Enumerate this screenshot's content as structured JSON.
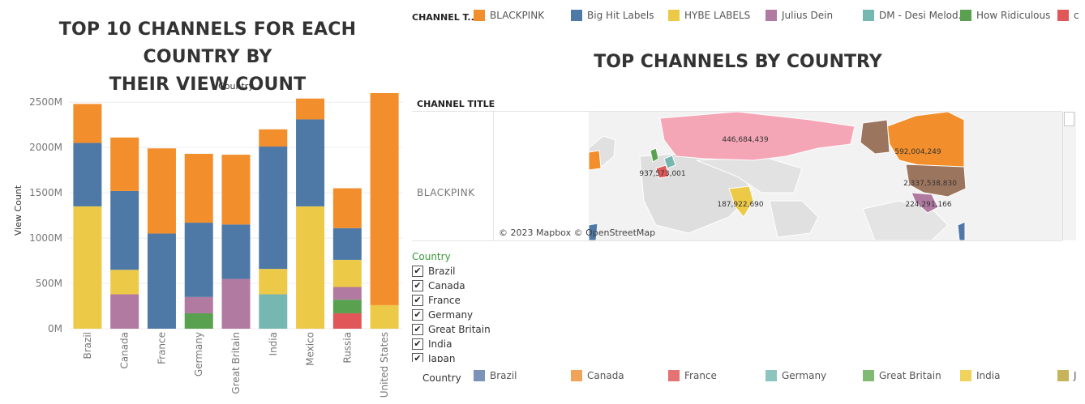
{
  "left_panel": {
    "title_line1": "TOP 10 CHANNELS FOR EACH COUNTRY BY",
    "title_line2": "THEIR VIEW COUNT"
  },
  "colors": {
    "BLACKPINK": "#f28e2b",
    "Big Hit Labels": "#4e79a7",
    "HYBE LABELS": "#edc948",
    "Julius Dein": "#b07aa1",
    "DM - Desi Melodies": "#76b7b2",
    "How Ridiculous": "#59a14f",
    "Other": "#e15759"
  },
  "chart_data": {
    "type": "bar",
    "stacked": true,
    "title": "",
    "xlabel": "Country",
    "ylabel": "View Count",
    "ylim": [
      0,
      2600
    ],
    "y_ticks": [
      "0M",
      "500M",
      "1000M",
      "1500M",
      "2000M",
      "2500M"
    ],
    "y_tick_values": [
      0,
      500,
      1000,
      1500,
      2000,
      2500
    ],
    "categories": [
      "Brazil",
      "Canada",
      "France",
      "Germany",
      "Great Britain",
      "India",
      "Mexico",
      "Russia",
      "United States"
    ],
    "series": [
      {
        "name": "C (red)",
        "color": "#e15759",
        "values": [
          0,
          0,
          0,
          0,
          0,
          0,
          0,
          170,
          0
        ]
      },
      {
        "name": "How Ridiculous",
        "color": "#59a14f",
        "values": [
          0,
          0,
          0,
          170,
          0,
          0,
          0,
          150,
          0
        ]
      },
      {
        "name": "DM - Desi Melodies",
        "color": "#76b7b2",
        "values": [
          0,
          0,
          0,
          0,
          0,
          380,
          0,
          0,
          0
        ]
      },
      {
        "name": "Julius Dein",
        "color": "#b07aa1",
        "values": [
          0,
          380,
          0,
          180,
          550,
          0,
          0,
          140,
          0
        ]
      },
      {
        "name": "HYBE LABELS",
        "color": "#edc948",
        "values": [
          1350,
          270,
          0,
          0,
          0,
          280,
          1350,
          300,
          260
        ]
      },
      {
        "name": "Big Hit Labels",
        "color": "#4e79a7",
        "values": [
          700,
          870,
          1050,
          820,
          600,
          1350,
          960,
          350,
          0
        ]
      },
      {
        "name": "BLACKPINK",
        "color": "#f28e2b",
        "values": [
          430,
          590,
          940,
          760,
          770,
          190,
          230,
          440,
          2340
        ]
      }
    ]
  },
  "top_legend": {
    "title": "CHANNEL T..",
    "items": [
      {
        "label": "BLACKPINK",
        "color": "#f28e2b"
      },
      {
        "label": "Big Hit Labels",
        "color": "#4e79a7"
      },
      {
        "label": "HYBE LABELS",
        "color": "#edc948"
      },
      {
        "label": "Julius Dein",
        "color": "#b07aa1"
      },
      {
        "label": "DM - Desi Melod..",
        "color": "#76b7b2"
      },
      {
        "label": "How Ridiculous",
        "color": "#59a14f"
      },
      {
        "label": "c",
        "color": "#e15759"
      }
    ]
  },
  "map_panel": {
    "title": "TOP CHANNELS BY COUNTRY",
    "column_header": "CHANNEL TITLE",
    "row_label": "BLACKPINK",
    "attribution": "© 2023 Mapbox © OpenStreetMap",
    "labels": [
      {
        "text": "446,684,439"
      },
      {
        "text": "592,004,249"
      },
      {
        "text": "937,573,001"
      },
      {
        "text": "2,337,538,830"
      },
      {
        "text": "187,922,690"
      },
      {
        "text": "224,291,166"
      }
    ]
  },
  "country_filter": {
    "title": "Country",
    "items": [
      {
        "label": "Brazil",
        "checked": "✔"
      },
      {
        "label": "Canada",
        "checked": "✔"
      },
      {
        "label": "France",
        "checked": "✔"
      },
      {
        "label": "Germany",
        "checked": "✔"
      },
      {
        "label": "Great Britain",
        "checked": "✔"
      },
      {
        "label": "India",
        "checked": "✔"
      },
      {
        "label": "Japan",
        "checked": "✔"
      }
    ]
  },
  "bottom_legend": {
    "title": "Country",
    "items": [
      {
        "label": "Brazil",
        "color": "#7b93b8"
      },
      {
        "label": "Canada",
        "color": "#f2a35a"
      },
      {
        "label": "France",
        "color": "#e57373"
      },
      {
        "label": "Germany",
        "color": "#8cc4bf"
      },
      {
        "label": "Great Britain",
        "color": "#7fba72"
      },
      {
        "label": "India",
        "color": "#f0d35d"
      },
      {
        "label": "J",
        "color": "#c7b35a"
      }
    ]
  }
}
